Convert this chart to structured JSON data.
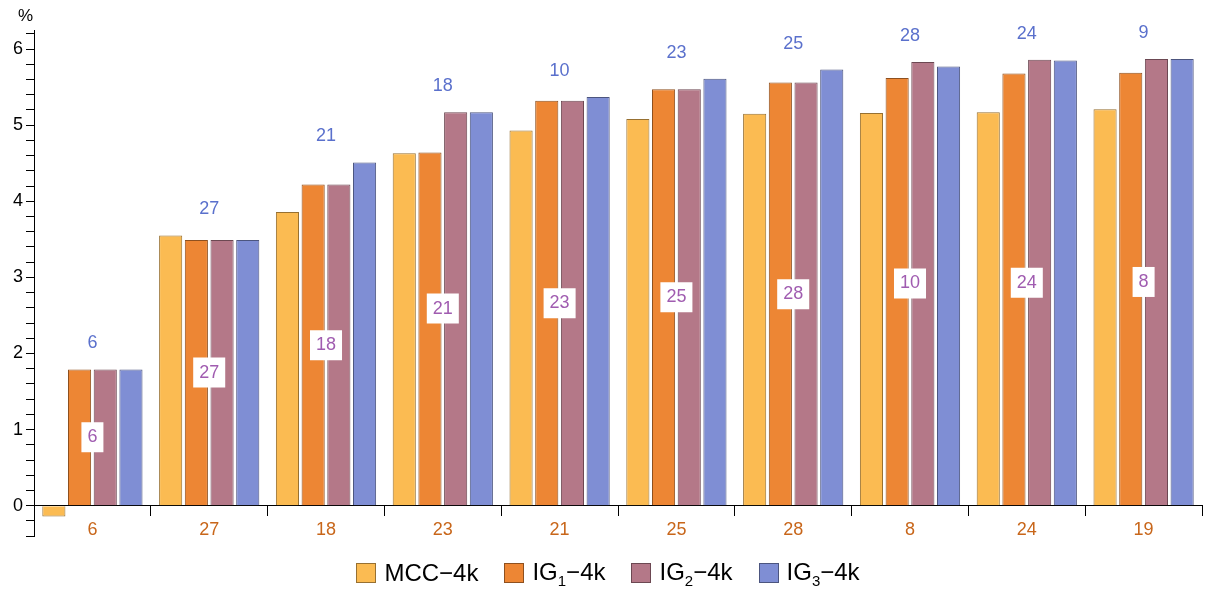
{
  "chart_data": {
    "type": "bar",
    "ylabel": "%",
    "categories": [
      "6",
      "27",
      "18",
      "23",
      "21",
      "25",
      "28",
      "8",
      "24",
      "19"
    ],
    "series": [
      {
        "name": "MCC−4k",
        "color": "#fbbb52",
        "values": [
          -0.14,
          3.55,
          3.86,
          4.63,
          4.93,
          5.08,
          5.15,
          5.16,
          5.17,
          5.21
        ]
      },
      {
        "name": "IG$_{1}$−4k",
        "color": "#ed8634",
        "values": [
          1.79,
          3.49,
          4.22,
          4.64,
          5.32,
          5.47,
          5.56,
          5.62,
          5.68,
          5.69
        ]
      },
      {
        "name": "IG$_{2}$−4k",
        "color": "#b47888",
        "values": [
          1.79,
          3.49,
          4.22,
          5.17,
          5.32,
          5.47,
          5.56,
          5.83,
          5.86,
          5.87
        ]
      },
      {
        "name": "IG$_{3}$−4k",
        "color": "#7f8ed4",
        "values": [
          1.79,
          3.49,
          4.51,
          5.17,
          5.37,
          5.61,
          5.73,
          5.77,
          5.85,
          5.87
        ]
      }
    ],
    "annotations": [
      {
        "text": "6",
        "x": "6",
        "y": 0.9
      },
      {
        "text": "27",
        "x": "27",
        "y": 1.75
      },
      {
        "text": "18",
        "x": "18",
        "y": 2.11
      },
      {
        "text": "21",
        "x": "23",
        "y": 2.59
      },
      {
        "text": "23",
        "x": "21",
        "y": 2.66
      },
      {
        "text": "25",
        "x": "25",
        "y": 2.74
      },
      {
        "text": "28",
        "x": "28",
        "y": 2.78
      },
      {
        "text": "10",
        "x": "8",
        "y": 2.92
      },
      {
        "text": "24",
        "x": "24",
        "y": 2.93
      },
      {
        "text": "8",
        "x": "19",
        "y": 2.94
      },
      "6",
      "27",
      "21",
      "18",
      "10",
      "23",
      "25",
      "28",
      "24",
      "9"
    ],
    "ylim": [
      -0.4,
      6.25
    ],
    "yticks": [
      {
        "value": -0.4,
        "label": null
      },
      {
        "value": -0.2,
        "label": null
      },
      0,
      {
        "value": 0.2,
        "label": null
      },
      {
        "value": 0.4,
        "label": null
      },
      {
        "value": 0.6,
        "label": null
      },
      {
        "value": 0.8,
        "label": null
      },
      1,
      {
        "value": 1.2,
        "label": null
      },
      {
        "value": 1.4,
        "label": null
      },
      {
        "value": 1.6,
        "label": null
      },
      {
        "value": 1.8,
        "label": null
      },
      2,
      {
        "value": 2.2,
        "label": null
      },
      {
        "value": 2.4,
        "label": null
      },
      {
        "value": 2.6,
        "label": null
      },
      {
        "value": 2.8,
        "label": null
      },
      3,
      {
        "value": 3.2,
        "label": null
      },
      {
        "value": 3.4,
        "label": null
      },
      {
        "value": 3.6,
        "label": null
      },
      {
        "value": 3.8,
        "label": null
      },
      4,
      {
        "value": 4.2,
        "label": null
      },
      {
        "value": 4.4,
        "label": null
      },
      {
        "value": 4.6,
        "label": null
      },
      {
        "value": 4.8,
        "label": null
      },
      5,
      {
        "value": 5.2,
        "label": null
      },
      {
        "value": 5.4,
        "label": null
      },
      {
        "value": 5.6,
        "label": null
      },
      {
        "value": 5.8,
        "label": null
      },
      6,
      {
        "value": 6.2,
        "label": null
      }
    ],
    "grid": false,
    "legend": "bottom"
  }
}
